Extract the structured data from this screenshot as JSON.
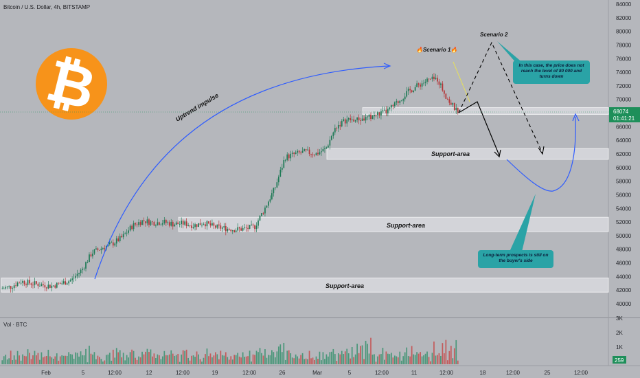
{
  "header": {
    "title": "Bitcoin / U.S. Dollar, 4h, BITSTAMP"
  },
  "price_axis": {
    "ticks": [
      "84000",
      "82000",
      "80000",
      "78000",
      "76000",
      "74000",
      "72000",
      "70000",
      "68000",
      "66000",
      "64000",
      "62000",
      "60000",
      "58000",
      "56000",
      "54000",
      "52000",
      "50000",
      "48000",
      "46000",
      "44000",
      "42000",
      "40000"
    ],
    "current_price": "68074",
    "countdown": "01:41:21"
  },
  "volume_axis": {
    "ticks": [
      "3K",
      "2K",
      "1K"
    ],
    "current": "259"
  },
  "volume_title": "Vol · BTC",
  "time_axis": {
    "labels": [
      "Feb",
      "5",
      "12:00",
      "12",
      "12:00",
      "19",
      "12:00",
      "26",
      "Mar",
      "5",
      "12:00",
      "11",
      "12:00",
      "18",
      "12:00",
      "25",
      "12:00"
    ]
  },
  "annotations": {
    "support_1": "Support-area",
    "support_2": "Support-area",
    "support_3": "Support-area",
    "uptrend": "Uptrend impulse",
    "scenario1": "🔥Scenario 1🔥",
    "scenario2": "Scenario 2",
    "note_scenario2": "In this case, the price does not reach the level of 80 000 and turns down",
    "note_longterm": "Long-term prospects is still on the buyer's side"
  },
  "colors": {
    "background": "#b5b7bc",
    "bull": "#1f7a56",
    "bear": "#b53436",
    "bitcoin_orange": "#f7931a",
    "callout": "#2aa3a6",
    "curve": "#2d5bff",
    "price_tag": "#1e8f5a"
  },
  "chart_data": {
    "type": "candlestick",
    "title": "Bitcoin / U.S. Dollar, 4h, BITSTAMP",
    "ylim": [
      40000,
      84000
    ],
    "path": [
      [
        "Jan 31",
        42200
      ],
      [
        "Feb 1",
        42500
      ],
      [
        "Feb 2",
        43300
      ],
      [
        "Feb 3",
        43000
      ],
      [
        "Feb 4",
        42800
      ],
      [
        "Feb 5",
        42600
      ],
      [
        "Feb 6",
        43000
      ],
      [
        "Feb 7",
        43500
      ],
      [
        "Feb 8",
        45000
      ],
      [
        "Feb 9",
        47500
      ],
      [
        "Feb 10",
        48200
      ],
      [
        "Feb 11",
        48800
      ],
      [
        "Feb 12",
        49800
      ],
      [
        "Feb 13",
        51500
      ],
      [
        "Feb 14",
        52200
      ],
      [
        "Feb 15",
        51900
      ],
      [
        "Feb 16",
        52000
      ],
      [
        "Feb 17",
        51700
      ],
      [
        "Feb 18",
        51800
      ],
      [
        "Feb 19",
        51500
      ],
      [
        "Feb 20",
        51900
      ],
      [
        "Feb 21",
        51300
      ],
      [
        "Feb 22",
        51100
      ],
      [
        "Feb 23",
        50900
      ],
      [
        "Feb 24",
        51000
      ],
      [
        "Feb 25",
        51300
      ],
      [
        "Feb 26",
        54000
      ],
      [
        "Feb 27",
        57000
      ],
      [
        "Feb 28",
        61500
      ],
      [
        "Feb 29",
        62000
      ],
      [
        "Mar 1",
        62300
      ],
      [
        "Mar 2",
        62000
      ],
      [
        "Mar 3",
        62700
      ],
      [
        "Mar 4",
        66000
      ],
      [
        "Mar 5",
        67000
      ],
      [
        "Mar 6",
        67000
      ],
      [
        "Mar 7",
        67200
      ],
      [
        "Mar 8",
        67800
      ],
      [
        "Mar 9",
        68200
      ],
      [
        "Mar 10",
        69500
      ],
      [
        "Mar 11",
        71000
      ],
      [
        "Mar 12",
        72000
      ],
      [
        "Mar 13",
        72800
      ],
      [
        "Mar 14",
        73000
      ],
      [
        "Mar 15",
        70000
      ],
      [
        "Mar 16",
        68074
      ]
    ],
    "volume_ylim": [
      0,
      3000
    ],
    "support_zones": [
      [
        41700,
        43800
      ],
      [
        50600,
        52700
      ],
      [
        61200,
        62800
      ],
      [
        67800,
        68800
      ]
    ],
    "current_price": 68074
  }
}
